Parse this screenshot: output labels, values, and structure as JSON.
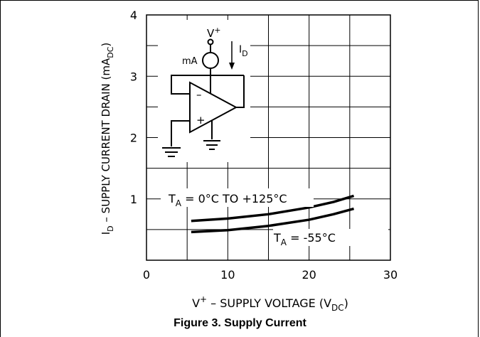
{
  "figure": {
    "caption": "Figure 3. Supply Current"
  },
  "chart_data": {
    "type": "line",
    "x_ticks": [
      "0",
      "10",
      "20",
      "30"
    ],
    "y_ticks": [
      "1",
      "2",
      "3",
      "4"
    ],
    "xlim": [
      0,
      30
    ],
    "ylim": [
      0,
      4
    ],
    "grid": true,
    "xlabel": {
      "main": "V",
      "sup": "+",
      "rest": " – SUPPLY VOLTAGE (V",
      "sub": "DC",
      "end": ")"
    },
    "ylabel": {
      "main": "I",
      "sub": "D",
      "rest": " – SUPPLY CURRENT DRAIN (mA",
      "sub2": "DC",
      "end": ")"
    },
    "series": [
      {
        "name": "T_A = 0°C TO +125°C",
        "x": [
          5.5,
          10,
          15,
          20,
          23,
          25.5
        ],
        "y": [
          0.64,
          0.68,
          0.75,
          0.86,
          0.95,
          1.05
        ]
      },
      {
        "name": "T_A = -55°C",
        "x": [
          5.5,
          10,
          15,
          20,
          23,
          25.5
        ],
        "y": [
          0.46,
          0.49,
          0.56,
          0.66,
          0.75,
          0.84
        ]
      }
    ],
    "annotations": {
      "hot_label": {
        "pre": "T",
        "sub": "A",
        "rest": " = 0°C TO +125°C"
      },
      "cold_label": {
        "pre": "T",
        "sub": "A",
        "rest": " = -55°C"
      }
    },
    "inset": {
      "supply": "V",
      "supply_sup": "+",
      "meter": "mA",
      "current": "I",
      "current_sub": "D",
      "minus": "–",
      "plus": "+"
    }
  }
}
